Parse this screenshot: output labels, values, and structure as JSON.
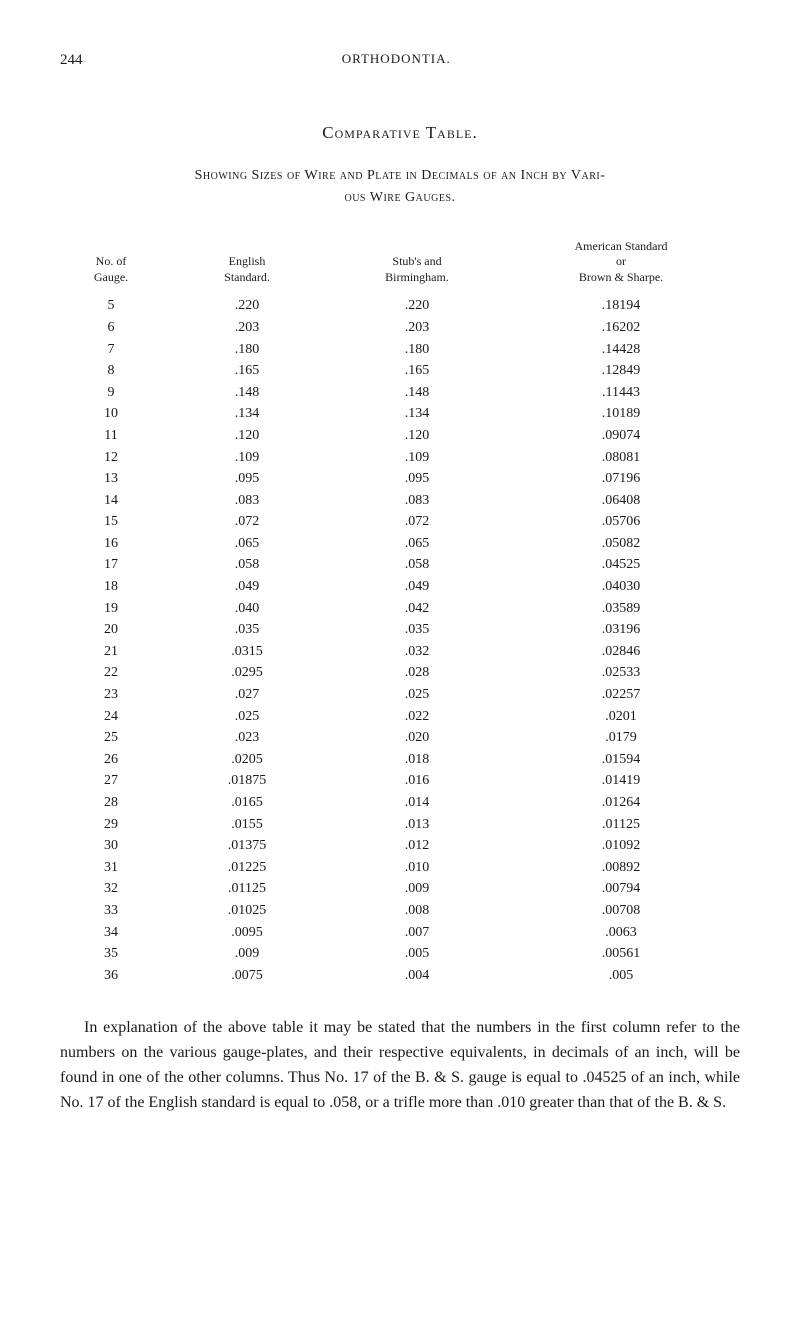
{
  "header": {
    "page_number": "244",
    "running_title": "ORTHODONTIA."
  },
  "title": "Comparative Table.",
  "subtitle_line1": "Showing Sizes of Wire and Plate in Decimals of an Inch by Vari-",
  "subtitle_line2": "ous Wire Gauges.",
  "table": {
    "headers": {
      "col1_line1": "No. of",
      "col1_line2": "Gauge.",
      "col2_line1": "English",
      "col2_line2": "Standard.",
      "col3_line1": "Stub's and",
      "col3_line2": "Birmingham.",
      "col4_line1": "American Standard",
      "col4_line2": "or",
      "col4_line3": "Brown & Sharpe."
    },
    "rows": [
      [
        "5",
        ".220",
        ".220",
        ".18194"
      ],
      [
        "6",
        ".203",
        ".203",
        ".16202"
      ],
      [
        "7",
        ".180",
        ".180",
        ".14428"
      ],
      [
        "8",
        ".165",
        ".165",
        ".12849"
      ],
      [
        "9",
        ".148",
        ".148",
        ".11443"
      ],
      [
        "10",
        ".134",
        ".134",
        ".10189"
      ],
      [
        "11",
        ".120",
        ".120",
        ".09074"
      ],
      [
        "12",
        ".109",
        ".109",
        ".08081"
      ],
      [
        "13",
        ".095",
        ".095",
        ".07196"
      ],
      [
        "14",
        ".083",
        ".083",
        ".06408"
      ],
      [
        "15",
        ".072",
        ".072",
        ".05706"
      ],
      [
        "16",
        ".065",
        ".065",
        ".05082"
      ],
      [
        "17",
        ".058",
        ".058",
        ".04525"
      ],
      [
        "18",
        ".049",
        ".049",
        ".04030"
      ],
      [
        "19",
        ".040",
        ".042",
        ".03589"
      ],
      [
        "20",
        ".035",
        ".035",
        ".03196"
      ],
      [
        "21",
        ".0315",
        ".032",
        ".02846"
      ],
      [
        "22",
        ".0295",
        ".028",
        ".02533"
      ],
      [
        "23",
        ".027",
        ".025",
        ".02257"
      ],
      [
        "24",
        ".025",
        ".022",
        ".0201"
      ],
      [
        "25",
        ".023",
        ".020",
        ".0179"
      ],
      [
        "26",
        ".0205",
        ".018",
        ".01594"
      ],
      [
        "27",
        ".01875",
        ".016",
        ".01419"
      ],
      [
        "28",
        ".0165",
        ".014",
        ".01264"
      ],
      [
        "29",
        ".0155",
        ".013",
        ".01125"
      ],
      [
        "30",
        ".01375",
        ".012",
        ".01092"
      ],
      [
        "31",
        ".01225",
        ".010",
        ".00892"
      ],
      [
        "32",
        ".01125",
        ".009",
        ".00794"
      ],
      [
        "33",
        ".01025",
        ".008",
        ".00708"
      ],
      [
        "34",
        ".0095",
        ".007",
        ".0063"
      ],
      [
        "35",
        ".009",
        ".005",
        ".00561"
      ],
      [
        "36",
        ".0075",
        ".004",
        ".005"
      ]
    ]
  },
  "paragraph": "In explanation of the above table it may be stated that the numbers in the first column refer to the numbers on the various gauge-plates, and their respective equivalents, in decimals of an inch, will be found in one of the other columns. Thus No. 17 of the B. & S. gauge is equal to .04525 of an inch, while No. 17 of the English standard is equal to .058, or a trifle more than .010 greater than that of the B. & S."
}
